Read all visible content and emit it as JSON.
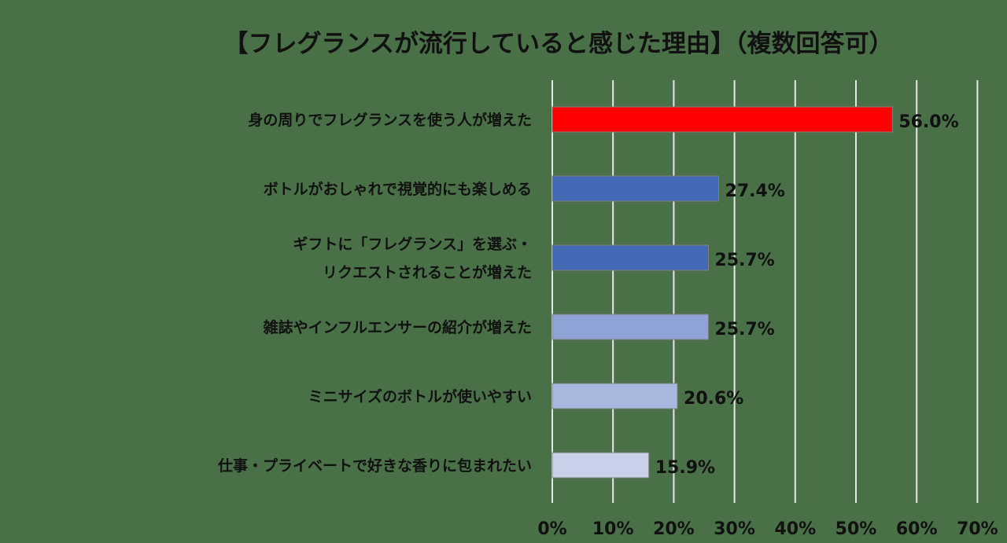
{
  "chart_data": {
    "type": "bar",
    "orientation": "horizontal",
    "title": "【フレグランスが流行していると感じた理由】（複数回答可）",
    "categories": [
      [
        "身の周りでフレグランスを使う人が増えた"
      ],
      [
        "ボトルがおしゃれで視覚的にも楽しめる"
      ],
      [
        "ギフトに「フレグランス」を選ぶ・",
        "リクエストされることが増えた"
      ],
      [
        "雑誌やインフルエンサーの紹介が増えた"
      ],
      [
        "ミニサイズのボトルが使いやすい"
      ],
      [
        "仕事・プライベートで好きな香りに包まれたい"
      ]
    ],
    "values": [
      56.0,
      27.4,
      25.7,
      25.7,
      20.6,
      15.9
    ],
    "value_labels": [
      "56.0%",
      "27.4%",
      "25.7%",
      "25.7%",
      "20.6%",
      "15.9%"
    ],
    "bar_colors": [
      "#ff0000",
      "#4169b5",
      "#4169b5",
      "#8fa4d6",
      "#a8b8df",
      "#c8d0ea"
    ],
    "xlim": [
      0,
      70
    ],
    "x_ticks": [
      "0%",
      "10%",
      "20%",
      "30%",
      "40%",
      "50%",
      "60%",
      "70%"
    ],
    "grid": "vertical",
    "legend": "none"
  }
}
